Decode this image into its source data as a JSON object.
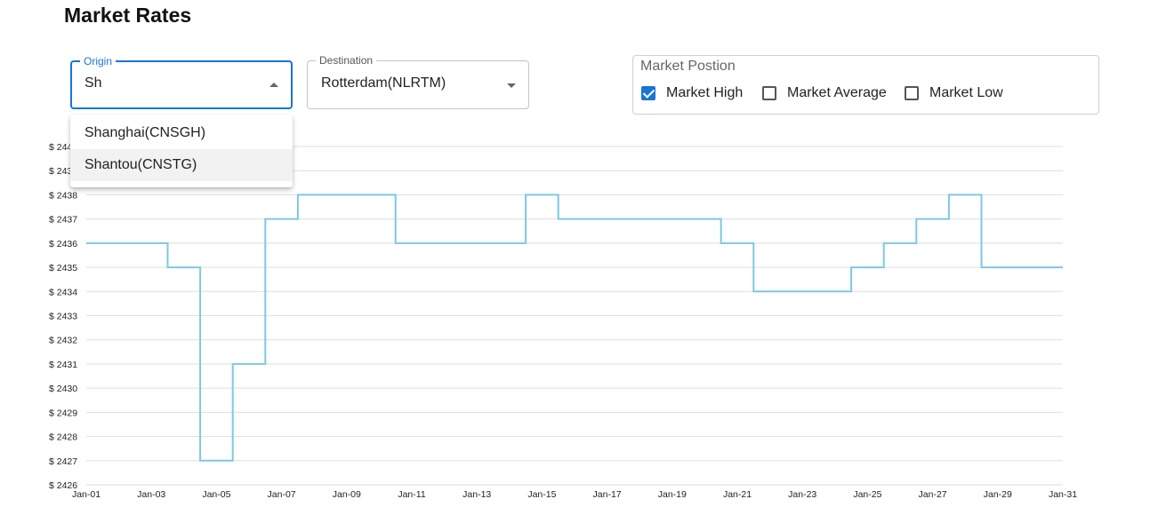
{
  "page": {
    "title": "Market Rates"
  },
  "origin": {
    "label": "Origin",
    "value": "Sh",
    "options": [
      "Shanghai(CNSGH)",
      "Shantou(CNSTG)"
    ]
  },
  "destination": {
    "label": "Destination",
    "value": "Rotterdam(NLRTM)"
  },
  "market_position": {
    "label": "Market Postion",
    "options": [
      {
        "label": "Market High",
        "checked": true
      },
      {
        "label": "Market Average",
        "checked": false
      },
      {
        "label": "Market Low",
        "checked": false
      }
    ]
  },
  "chart_data": {
    "type": "line",
    "step": true,
    "line_color": "#7ec8e3",
    "ylim": [
      2426,
      2440
    ],
    "y_ticks": [
      2426,
      2427,
      2428,
      2429,
      2430,
      2431,
      2432,
      2433,
      2434,
      2435,
      2436,
      2437,
      2438,
      2439,
      2440
    ],
    "y_tick_prefix": "$ ",
    "x_tick_days": [
      1,
      3,
      5,
      7,
      9,
      11,
      13,
      15,
      17,
      19,
      21,
      23,
      25,
      27,
      29,
      31
    ],
    "x_tick_labels": [
      "Jan-01",
      "Jan-03",
      "Jan-05",
      "Jan-07",
      "Jan-09",
      "Jan-11",
      "Jan-13",
      "Jan-15",
      "Jan-17",
      "Jan-19",
      "Jan-21",
      "Jan-23",
      "Jan-25",
      "Jan-27",
      "Jan-29",
      "Jan-31"
    ],
    "series": [
      {
        "name": "Market High",
        "x": [
          1,
          3.5,
          4.5,
          5.5,
          6.5,
          7.5,
          10.5,
          14.5,
          15.5,
          20.5,
          21.5,
          24.5,
          25.5,
          26.5,
          27.5,
          28.5,
          31
        ],
        "values": [
          2436,
          2435,
          2427,
          2431,
          2437,
          2438,
          2436,
          2438,
          2437,
          2436,
          2434,
          2435,
          2436,
          2437,
          2438,
          2435,
          2435
        ]
      }
    ]
  }
}
